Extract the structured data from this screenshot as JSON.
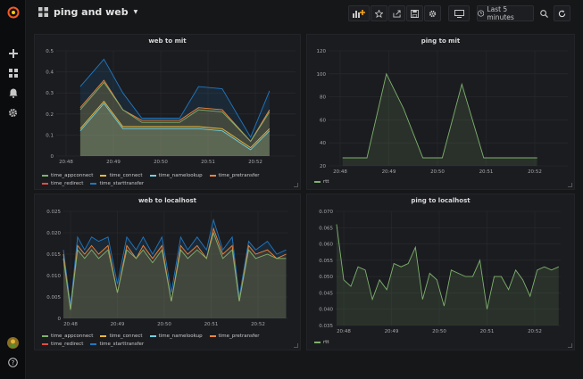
{
  "dashboard": {
    "title": "ping and web",
    "time_range": "Last 5 minutes"
  },
  "icons": {
    "logo": "grafana-logo-icon",
    "apps": "apps-grid-icon",
    "add_panel": "add-panel-icon",
    "star": "star-icon",
    "share": "share-icon",
    "save": "save-icon",
    "settings": "gear-icon",
    "tv": "tv-mode-icon",
    "clock": "clock-icon",
    "search": "search-icon",
    "refresh": "refresh-icon"
  },
  "colors": {
    "time_appconnect": "#7eb26d",
    "time_connect": "#eab839",
    "time_namelookup": "#6ed0e0",
    "time_pretransfer": "#ef843c",
    "time_redirect": "#e24d42",
    "time_starttransfer": "#1f78c1",
    "rtt": "#7eb26d"
  },
  "panels": [
    {
      "title": "web to mit",
      "legend": [
        "time_appconnect",
        "time_connect",
        "time_namelookup",
        "time_pretransfer",
        "time_redirect",
        "time_starttransfer"
      ],
      "chart_data": {
        "type": "area",
        "ylim": [
          0,
          0.5
        ],
        "yticks": [
          "0",
          "0.1",
          "0.2",
          "0.3",
          "0.4",
          "0.5"
        ],
        "xticks": [
          "20:48",
          "20:49",
          "20:50",
          "20:51",
          "20:52"
        ],
        "xtick_minutes": [
          0,
          1,
          2,
          3,
          4
        ],
        "x_minutes": [
          0.3,
          0.8,
          1.2,
          1.6,
          2.0,
          2.4,
          2.8,
          3.3,
          3.9,
          4.3
        ],
        "series": [
          {
            "name": "time_starttransfer",
            "values": [
              0.33,
              0.46,
              0.3,
              0.18,
              0.18,
              0.18,
              0.33,
              0.32,
              0.09,
              0.31
            ]
          },
          {
            "name": "time_pretransfer",
            "values": [
              0.23,
              0.36,
              0.22,
              0.17,
              0.17,
              0.17,
              0.23,
              0.22,
              0.07,
              0.22
            ]
          },
          {
            "name": "time_appconnect",
            "values": [
              0.22,
              0.35,
              0.22,
              0.16,
              0.16,
              0.16,
              0.22,
              0.21,
              0.07,
              0.21
            ]
          },
          {
            "name": "time_connect",
            "values": [
              0.13,
              0.26,
              0.14,
              0.14,
              0.14,
              0.14,
              0.14,
              0.13,
              0.04,
              0.13
            ]
          },
          {
            "name": "time_namelookup",
            "values": [
              0.12,
              0.25,
              0.13,
              0.13,
              0.13,
              0.13,
              0.13,
              0.12,
              0.03,
              0.12
            ]
          }
        ]
      }
    },
    {
      "title": "ping to mit",
      "legend": [
        "rtt"
      ],
      "chart_data": {
        "type": "area",
        "ylim": [
          20,
          120
        ],
        "yticks": [
          "20",
          "40",
          "60",
          "80",
          "100",
          "120"
        ],
        "xticks": [
          "20:48",
          "20:49",
          "20:50",
          "20:51",
          "20:52"
        ],
        "xtick_minutes": [
          0,
          1,
          2,
          3,
          4
        ],
        "x_minutes": [
          0.05,
          0.55,
          0.95,
          1.3,
          1.7,
          2.1,
          2.5,
          2.95,
          3.35,
          4.05
        ],
        "series": [
          {
            "name": "rtt",
            "values": [
              27,
              27,
              100,
              70,
              27,
              27,
              91,
              27,
              27,
              27
            ]
          }
        ]
      }
    },
    {
      "title": "web to localhost",
      "legend": [
        "time_appconnect",
        "time_connect",
        "time_namelookup",
        "time_pretransfer",
        "time_redirect",
        "time_starttransfer"
      ],
      "chart_data": {
        "type": "area",
        "ylim": [
          0,
          0.025
        ],
        "yticks": [
          "0",
          "0.005",
          "0.010",
          "0.015",
          "0.020",
          "0.025"
        ],
        "xticks": [
          "20:48",
          "20:49",
          "20:50",
          "20:51",
          "20:52"
        ],
        "xtick_minutes": [
          0,
          1,
          2,
          3,
          4
        ],
        "x_minutes": [
          -0.2,
          0.0,
          0.15,
          0.3,
          0.45,
          0.6,
          0.8,
          1.0,
          1.2,
          1.4,
          1.55,
          1.75,
          1.95,
          2.15,
          2.35,
          2.5,
          2.7,
          2.9,
          3.05,
          3.25,
          3.45,
          3.6,
          3.8,
          3.95,
          4.2,
          4.4,
          4.6
        ],
        "series": [
          {
            "name": "time_starttransfer",
            "values": [
              0.016,
              0.003,
              0.019,
              0.016,
              0.019,
              0.018,
              0.019,
              0.008,
              0.019,
              0.016,
              0.019,
              0.015,
              0.019,
              0.006,
              0.019,
              0.016,
              0.019,
              0.016,
              0.023,
              0.016,
              0.019,
              0.005,
              0.018,
              0.016,
              0.018,
              0.015,
              0.016
            ]
          },
          {
            "name": "time_pretransfer",
            "values": [
              0.015,
              0.002,
              0.017,
              0.015,
              0.017,
              0.015,
              0.017,
              0.006,
              0.017,
              0.014,
              0.017,
              0.014,
              0.017,
              0.004,
              0.017,
              0.015,
              0.017,
              0.014,
              0.021,
              0.015,
              0.017,
              0.004,
              0.017,
              0.015,
              0.016,
              0.014,
              0.015
            ]
          },
          {
            "name": "time_appconnect",
            "values": [
              0.014,
              0.002,
              0.016,
              0.014,
              0.016,
              0.014,
              0.016,
              0.006,
              0.016,
              0.014,
              0.016,
              0.013,
              0.016,
              0.004,
              0.016,
              0.014,
              0.016,
              0.014,
              0.02,
              0.014,
              0.016,
              0.004,
              0.016,
              0.014,
              0.015,
              0.014,
              0.014
            ]
          }
        ]
      }
    },
    {
      "title": "ping to localhost",
      "legend": [
        "rtt"
      ],
      "chart_data": {
        "type": "area",
        "ylim": [
          0.035,
          0.07
        ],
        "yticks": [
          "0.035",
          "0.040",
          "0.045",
          "0.050",
          "0.055",
          "0.060",
          "0.065",
          "0.070"
        ],
        "xticks": [
          "20:48",
          "20:49",
          "20:50",
          "20:51",
          "20:52"
        ],
        "xtick_minutes": [
          0,
          1,
          2,
          3,
          4
        ],
        "x_minutes": [
          -0.15,
          0.0,
          0.15,
          0.3,
          0.45,
          0.6,
          0.75,
          0.9,
          1.05,
          1.2,
          1.35,
          1.5,
          1.65,
          1.8,
          1.95,
          2.1,
          2.25,
          2.4,
          2.55,
          2.7,
          2.85,
          3.0,
          3.15,
          3.3,
          3.45,
          3.6,
          3.75,
          3.9,
          4.05,
          4.2,
          4.35,
          4.5
        ],
        "series": [
          {
            "name": "rtt",
            "values": [
              0.066,
              0.049,
              0.047,
              0.053,
              0.052,
              0.043,
              0.049,
              0.046,
              0.054,
              0.053,
              0.054,
              0.059,
              0.043,
              0.051,
              0.049,
              0.041,
              0.052,
              0.051,
              0.05,
              0.05,
              0.055,
              0.04,
              0.05,
              0.05,
              0.046,
              0.052,
              0.049,
              0.044,
              0.052,
              0.053,
              0.052,
              0.053
            ]
          }
        ]
      }
    }
  ]
}
